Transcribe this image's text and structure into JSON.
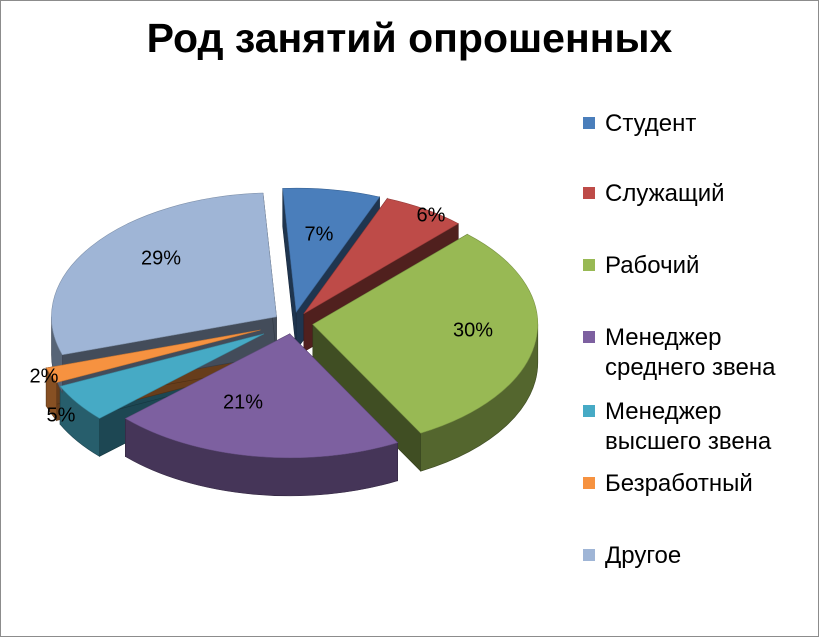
{
  "chart_data": {
    "type": "pie",
    "title": "Род занятий опрошенных",
    "categories": [
      "Студент",
      "Служащий",
      "Рабочий",
      "Менеджер\nсреднего звена",
      "Менеджер\nвысшего звена",
      "Безработный",
      "Другое"
    ],
    "values": [
      7,
      6,
      30,
      21,
      5,
      2,
      29
    ],
    "labels": [
      "7%",
      "6%",
      "30%",
      "21%",
      "5%",
      "2%",
      "29%"
    ],
    "colors": [
      "#4a7ebb",
      "#be4b48",
      "#98b954",
      "#7d60a0",
      "#46aac5",
      "#f69240",
      "#9fb5d6"
    ],
    "legend_position": "right",
    "exploded": true,
    "three_d": true
  }
}
